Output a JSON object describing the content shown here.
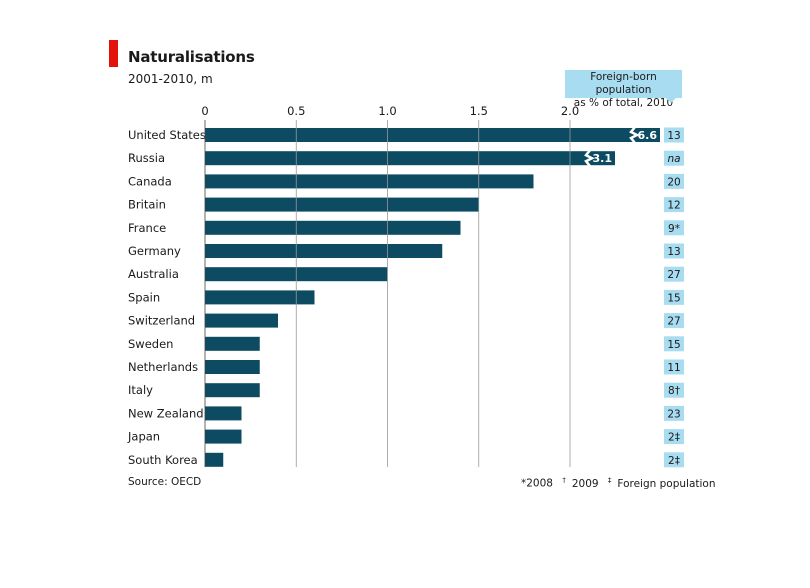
{
  "header": {
    "title": "Naturalisations",
    "subtitle": "2001-2010, m"
  },
  "foreign_born_header": {
    "line1": "Foreign-born population",
    "line2": "as % of total, 2010"
  },
  "source": "Source: OECD",
  "footnotes": {
    "f1": "*2008",
    "f2_mark": "†",
    "f2": "2009",
    "f3_mark": "‡",
    "f3": "Foreign population"
  },
  "colors": {
    "bar": "#0d4b63",
    "accent": "#e3120b",
    "box": "#a8dcf0",
    "grid": "#999999"
  },
  "chart_data": {
    "type": "bar",
    "orientation": "horizontal",
    "title": "Naturalisations",
    "subtitle": "2001-2010, m",
    "xlabel": "",
    "ylabel": "",
    "xlim": [
      0,
      2.0
    ],
    "axis_break_after": 2.35,
    "xticks": [
      0,
      0.5,
      1.0,
      1.5,
      2.0
    ],
    "xtick_labels": [
      "0",
      "0.5",
      "1.0",
      "1.5",
      "2.0"
    ],
    "grid": true,
    "categories": [
      "United States",
      "Russia",
      "Canada",
      "Britain",
      "France",
      "Germany",
      "Australia",
      "Spain",
      "Switzerland",
      "Sweden",
      "Netherlands",
      "Italy",
      "New Zealand",
      "Japan",
      "South Korea"
    ],
    "values": [
      6.6,
      3.1,
      1.8,
      1.5,
      1.4,
      1.3,
      1.0,
      0.6,
      0.4,
      0.3,
      0.3,
      0.3,
      0.2,
      0.2,
      0.1
    ],
    "value_labels": [
      "6.6",
      "3.1",
      "",
      "",
      "",
      "",
      "",
      "",
      "",
      "",
      "",
      "",
      "",
      "",
      ""
    ],
    "foreign_born_pct": [
      "13",
      "na",
      "20",
      "12",
      "9*",
      "13",
      "27",
      "15",
      "27",
      "15",
      "11",
      "8†",
      "23",
      "2‡",
      "2‡"
    ]
  }
}
